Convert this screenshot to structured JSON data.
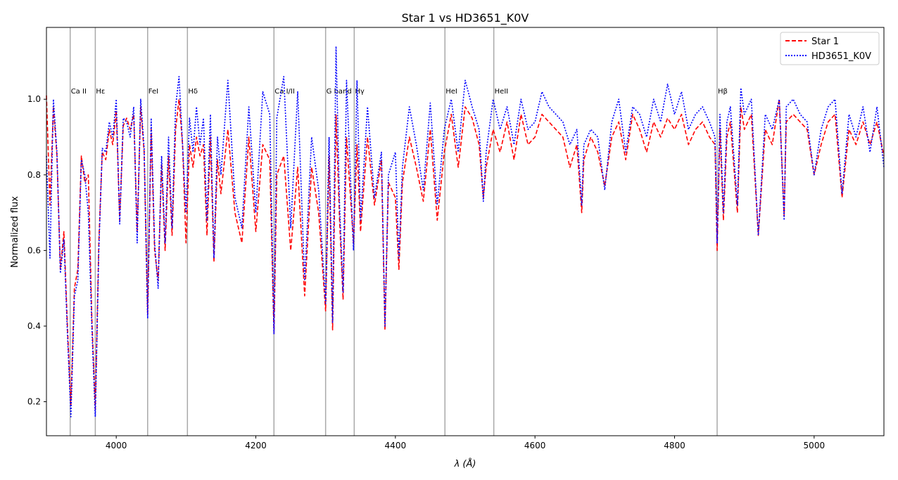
{
  "chart_data": {
    "type": "line",
    "title": "Star 1 vs HD3651_K0V",
    "xlabel": "λ (Å)",
    "ylabel": "Normalized flux",
    "xlim": [
      3900,
      5100
    ],
    "ylim": [
      0.11,
      1.19
    ],
    "xticks": [
      4000,
      4200,
      4400,
      4600,
      4800,
      5000
    ],
    "yticks": [
      0.2,
      0.4,
      0.6,
      0.8,
      1.0
    ],
    "xtick_labels": [
      "4000",
      "4200",
      "4400",
      "4600",
      "4800",
      "5000"
    ],
    "ytick_labels": [
      "0.2",
      "0.4",
      "0.6",
      "0.8",
      "1.0"
    ],
    "grid": false,
    "legend_position": "top-right",
    "spectral_lines": [
      {
        "label": "Ca II",
        "x": 3934
      },
      {
        "label": "Hε",
        "x": 3970
      },
      {
        "label": "FeI",
        "x": 4045
      },
      {
        "label": "Hδ",
        "x": 4102
      },
      {
        "label": "Ca I/II",
        "x": 4226
      },
      {
        "label": "G band",
        "x": 4300
      },
      {
        "label": "Hγ",
        "x": 4341
      },
      {
        "label": "HeI",
        "x": 4471
      },
      {
        "label": "HeII",
        "x": 4541
      },
      {
        "label": "Hβ",
        "x": 4861
      }
    ],
    "series": [
      {
        "name": "Star 1",
        "color": "#ff0000",
        "style": "dashed",
        "x": [
          3900,
          3905,
          3910,
          3915,
          3920,
          3925,
          3930,
          3935,
          3940,
          3945,
          3950,
          3955,
          3960,
          3965,
          3970,
          3975,
          3980,
          3985,
          3990,
          3995,
          4000,
          4005,
          4010,
          4015,
          4020,
          4025,
          4030,
          4035,
          4040,
          4045,
          4050,
          4055,
          4060,
          4065,
          4070,
          4075,
          4080,
          4085,
          4090,
          4095,
          4100,
          4105,
          4110,
          4115,
          4120,
          4125,
          4130,
          4135,
          4140,
          4145,
          4150,
          4160,
          4170,
          4180,
          4190,
          4200,
          4210,
          4220,
          4226,
          4230,
          4240,
          4250,
          4260,
          4270,
          4280,
          4290,
          4300,
          4305,
          4310,
          4315,
          4320,
          4325,
          4330,
          4340,
          4345,
          4350,
          4360,
          4370,
          4380,
          4385,
          4390,
          4400,
          4405,
          4410,
          4420,
          4430,
          4440,
          4450,
          4460,
          4470,
          4480,
          4490,
          4500,
          4510,
          4520,
          4526,
          4530,
          4540,
          4550,
          4560,
          4570,
          4580,
          4590,
          4600,
          4610,
          4620,
          4630,
          4640,
          4650,
          4660,
          4667,
          4670,
          4680,
          4690,
          4700,
          4710,
          4720,
          4730,
          4740,
          4750,
          4760,
          4770,
          4780,
          4790,
          4800,
          4810,
          4820,
          4830,
          4840,
          4850,
          4858,
          4861,
          4865,
          4870,
          4875,
          4880,
          4890,
          4895,
          4900,
          4910,
          4920,
          4930,
          4940,
          4950,
          4957,
          4960,
          4970,
          4980,
          4990,
          5000,
          5010,
          5020,
          5030,
          5040,
          5050,
          5060,
          5070,
          5080,
          5090,
          5100
        ],
        "values": [
          1.01,
          0.72,
          0.98,
          0.85,
          0.55,
          0.65,
          0.4,
          0.19,
          0.5,
          0.55,
          0.85,
          0.78,
          0.8,
          0.42,
          0.18,
          0.62,
          0.86,
          0.84,
          0.92,
          0.88,
          0.97,
          0.68,
          0.93,
          0.95,
          0.92,
          0.96,
          0.65,
          0.98,
          0.86,
          0.43,
          0.92,
          0.6,
          0.52,
          0.83,
          0.6,
          0.85,
          0.64,
          0.92,
          1.0,
          0.88,
          0.62,
          0.88,
          0.82,
          0.9,
          0.85,
          0.88,
          0.64,
          0.9,
          0.57,
          0.84,
          0.75,
          0.92,
          0.7,
          0.62,
          0.9,
          0.65,
          0.88,
          0.84,
          0.38,
          0.8,
          0.85,
          0.6,
          0.82,
          0.48,
          0.82,
          0.7,
          0.44,
          0.85,
          0.39,
          0.96,
          0.68,
          0.47,
          0.9,
          0.62,
          0.88,
          0.65,
          0.9,
          0.72,
          0.84,
          0.39,
          0.78,
          0.74,
          0.55,
          0.78,
          0.9,
          0.82,
          0.73,
          0.92,
          0.68,
          0.86,
          0.96,
          0.82,
          0.98,
          0.95,
          0.88,
          0.74,
          0.82,
          0.92,
          0.86,
          0.94,
          0.84,
          0.96,
          0.88,
          0.9,
          0.96,
          0.94,
          0.92,
          0.9,
          0.82,
          0.88,
          0.7,
          0.84,
          0.9,
          0.86,
          0.77,
          0.9,
          0.94,
          0.84,
          0.96,
          0.92,
          0.86,
          0.94,
          0.9,
          0.95,
          0.92,
          0.96,
          0.88,
          0.92,
          0.94,
          0.9,
          0.88,
          0.6,
          0.92,
          0.68,
          0.9,
          0.94,
          0.7,
          0.98,
          0.92,
          0.96,
          0.64,
          0.92,
          0.88,
          1.0,
          0.69,
          0.94,
          0.96,
          0.94,
          0.92,
          0.8,
          0.88,
          0.94,
          0.96,
          0.74,
          0.92,
          0.88,
          0.94,
          0.88,
          0.94,
          0.85
        ]
      },
      {
        "name": "HD3651_K0V",
        "color": "#0000ff",
        "style": "dotted",
        "x": [
          3900,
          3905,
          3910,
          3915,
          3920,
          3925,
          3930,
          3935,
          3940,
          3945,
          3950,
          3955,
          3960,
          3965,
          3970,
          3975,
          3980,
          3985,
          3990,
          3995,
          4000,
          4005,
          4010,
          4015,
          4020,
          4025,
          4030,
          4035,
          4040,
          4045,
          4050,
          4055,
          4060,
          4065,
          4070,
          4075,
          4080,
          4085,
          4090,
          4095,
          4100,
          4105,
          4110,
          4115,
          4120,
          4125,
          4130,
          4135,
          4140,
          4145,
          4150,
          4160,
          4170,
          4180,
          4190,
          4200,
          4210,
          4220,
          4226,
          4230,
          4240,
          4250,
          4260,
          4270,
          4280,
          4290,
          4300,
          4305,
          4310,
          4315,
          4320,
          4325,
          4330,
          4340,
          4345,
          4350,
          4360,
          4370,
          4380,
          4385,
          4390,
          4400,
          4405,
          4410,
          4420,
          4430,
          4440,
          4450,
          4460,
          4470,
          4480,
          4490,
          4500,
          4510,
          4520,
          4526,
          4530,
          4540,
          4550,
          4560,
          4570,
          4580,
          4590,
          4600,
          4610,
          4620,
          4630,
          4640,
          4650,
          4660,
          4667,
          4670,
          4680,
          4690,
          4700,
          4710,
          4720,
          4730,
          4740,
          4750,
          4760,
          4770,
          4780,
          4790,
          4800,
          4810,
          4820,
          4830,
          4840,
          4850,
          4858,
          4861,
          4865,
          4870,
          4875,
          4880,
          4890,
          4895,
          4900,
          4910,
          4920,
          4930,
          4940,
          4950,
          4957,
          4960,
          4970,
          4980,
          4990,
          5000,
          5010,
          5020,
          5030,
          5040,
          5050,
          5060,
          5070,
          5080,
          5090,
          5100
        ],
        "values": [
          0.85,
          0.58,
          1.0,
          0.86,
          0.54,
          0.63,
          0.38,
          0.16,
          0.48,
          0.52,
          0.84,
          0.8,
          0.7,
          0.4,
          0.16,
          0.6,
          0.87,
          0.86,
          0.94,
          0.9,
          1.0,
          0.67,
          0.95,
          0.94,
          0.9,
          0.98,
          0.62,
          1.0,
          0.87,
          0.42,
          0.95,
          0.62,
          0.5,
          0.85,
          0.62,
          0.9,
          0.66,
          0.98,
          1.06,
          0.88,
          0.7,
          0.95,
          0.86,
          0.98,
          0.88,
          0.95,
          0.68,
          0.96,
          0.58,
          0.9,
          0.8,
          1.05,
          0.74,
          0.66,
          0.98,
          0.7,
          1.02,
          0.96,
          0.38,
          0.95,
          1.06,
          0.66,
          1.02,
          0.52,
          0.9,
          0.76,
          0.46,
          0.9,
          0.41,
          1.14,
          0.72,
          0.49,
          1.05,
          0.6,
          1.05,
          0.68,
          0.98,
          0.74,
          0.86,
          0.4,
          0.8,
          0.86,
          0.58,
          0.82,
          0.98,
          0.88,
          0.76,
          0.99,
          0.72,
          0.92,
          1.0,
          0.86,
          1.05,
          0.98,
          0.92,
          0.73,
          0.86,
          1.0,
          0.92,
          0.98,
          0.88,
          1.0,
          0.92,
          0.94,
          1.02,
          0.98,
          0.96,
          0.94,
          0.88,
          0.92,
          0.72,
          0.88,
          0.92,
          0.9,
          0.76,
          0.94,
          1.0,
          0.86,
          0.98,
          0.96,
          0.9,
          1.0,
          0.94,
          1.04,
          0.96,
          1.02,
          0.92,
          0.96,
          0.98,
          0.94,
          0.9,
          0.62,
          0.96,
          0.7,
          0.94,
          0.98,
          0.72,
          1.03,
          0.96,
          1.0,
          0.64,
          0.96,
          0.92,
          1.0,
          0.68,
          0.98,
          1.0,
          0.96,
          0.94,
          0.8,
          0.92,
          0.98,
          1.0,
          0.75,
          0.96,
          0.9,
          0.98,
          0.86,
          0.98,
          0.82
        ]
      }
    ]
  }
}
